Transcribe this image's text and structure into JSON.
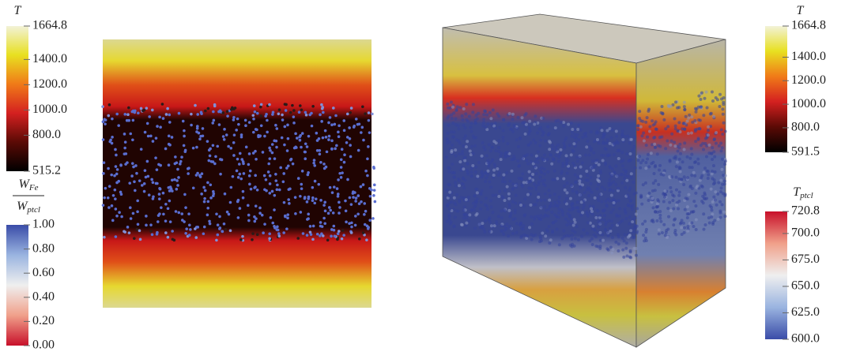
{
  "colorbars": [
    {
      "title": {
        "main": "T"
      },
      "range": [
        515.2,
        1664.8
      ],
      "colors": [
        "#000000",
        "#5a0a05",
        "#d42020",
        "#f07a18",
        "#e8e020",
        "#f2f2d8"
      ],
      "ticks": [
        1664.8,
        {
          "value": 1400,
          "label": "1400.0"
        },
        {
          "value": 1200,
          "label": "1200.0"
        },
        {
          "value": 1000,
          "label": "1000.0"
        },
        {
          "value": 800,
          "label": "800.0"
        },
        515.2
      ]
    },
    {
      "title": {
        "numerator": {
          "main": "W",
          "sub": "Fe"
        },
        "denominator": {
          "main": "W",
          "sub": "ptcl"
        }
      },
      "range": [
        0,
        1
      ],
      "colors": [
        "#c8102a",
        "#f0a08a",
        "#efefef",
        "#9ab4e0",
        "#3a4ca8"
      ],
      "ticks": [
        {
          "value": 1,
          "label": "1.00"
        },
        {
          "value": 0.8,
          "label": "0.80"
        },
        {
          "value": 0.6,
          "label": "0.60"
        },
        {
          "value": 0.4,
          "label": "0.40"
        },
        {
          "value": 0.2,
          "label": "0.20"
        },
        {
          "value": 0,
          "label": "0.00"
        }
      ]
    },
    {
      "title": {
        "main": "T"
      },
      "range": [
        591.5,
        1664.8
      ],
      "colors": [
        "#000000",
        "#5a0a05",
        "#d42020",
        "#f07a18",
        "#e8e020",
        "#f2f2d8"
      ],
      "ticks": [
        1664.8,
        {
          "value": 1400,
          "label": "1400.0"
        },
        {
          "value": 1200,
          "label": "1200.0"
        },
        {
          "value": 1000,
          "label": "1000.0"
        },
        {
          "value": 800,
          "label": "800.0"
        },
        591.5
      ]
    },
    {
      "title": {
        "main": "T",
        "sub": "ptcl"
      },
      "range": [
        600,
        720.8
      ],
      "colors": [
        "#3a4ca8",
        "#9ab4e0",
        "#efefef",
        "#f0a08a",
        "#c8102a"
      ],
      "ticks": [
        720.8,
        {
          "value": 700,
          "label": "700.0"
        },
        {
          "value": 675,
          "label": "675.0"
        },
        {
          "value": 650,
          "label": "650.0"
        },
        {
          "value": 625,
          "label": "625.0"
        },
        {
          "value": 600,
          "label": "600.0"
        }
      ]
    }
  ]
}
